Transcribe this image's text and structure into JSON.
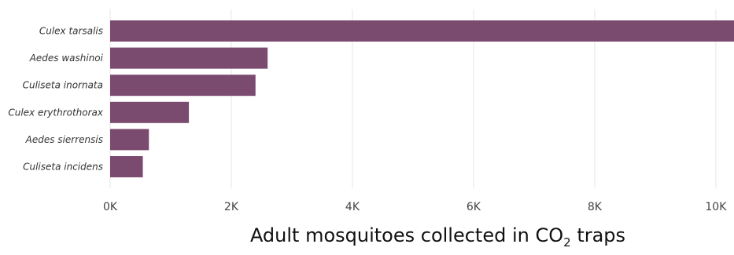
{
  "chart_data": {
    "type": "bar",
    "orientation": "horizontal",
    "categories": [
      "Culex tarsalis",
      "Aedes washinoi",
      "Culiseta inornata",
      "Culex erythrothorax",
      "Aedes sierrensis",
      "Culiseta incidens"
    ],
    "values": [
      10300,
      2600,
      2400,
      1300,
      640,
      540
    ],
    "xlim": [
      0,
      10300
    ],
    "xticks": [
      0,
      2000,
      4000,
      6000,
      8000,
      10000
    ],
    "xtick_labels": [
      "0K",
      "2K",
      "4K",
      "6K",
      "8K",
      "10K"
    ],
    "xlabel_main": "Adult mosquitoes collected in CO",
    "xlabel_sub": "2",
    "xlabel_tail": " traps",
    "grid": "vertical",
    "bar_color": "#7b4a6f",
    "grid_color": "#e6e6e6"
  }
}
